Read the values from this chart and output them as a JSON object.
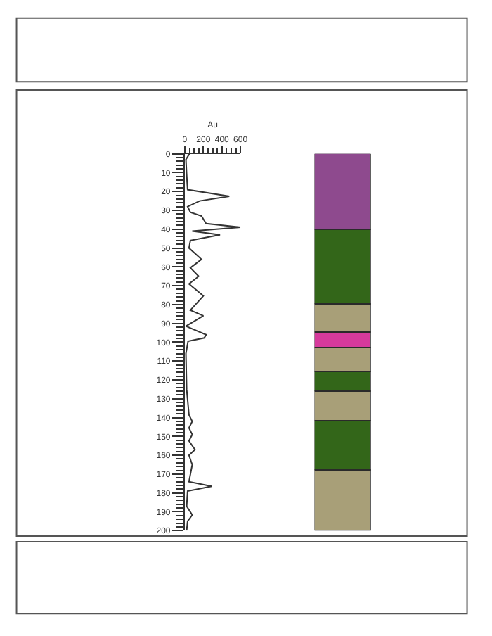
{
  "chart_data": [
    {
      "type": "line",
      "xlabel": "Au",
      "xlim": [
        0,
        600
      ],
      "xticks": [
        0,
        {
          "value": 50,
          "label": null
        },
        {
          "value": 100,
          "label": null
        },
        {
          "value": 150,
          "label": null
        },
        200,
        {
          "value": 250,
          "label": null
        },
        {
          "value": 300,
          "label": null
        },
        {
          "value": 350,
          "label": null
        },
        400,
        {
          "value": 450,
          "label": null
        },
        {
          "value": 500,
          "label": null
        },
        {
          "value": 550,
          "label": null
        },
        600
      ],
      "ylim": [
        200,
        0
      ],
      "yticks": [
        0,
        {
          "value": 2,
          "label": null
        },
        {
          "value": 4,
          "label": null
        },
        {
          "value": 6,
          "label": null
        },
        {
          "value": 8,
          "label": null
        },
        10,
        {
          "value": 12,
          "label": null
        },
        {
          "value": 14,
          "label": null
        },
        {
          "value": 16,
          "label": null
        },
        {
          "value": 18,
          "label": null
        },
        20,
        {
          "value": 22,
          "label": null
        },
        {
          "value": 24,
          "label": null
        },
        {
          "value": 26,
          "label": null
        },
        {
          "value": 28,
          "label": null
        },
        30,
        {
          "value": 32,
          "label": null
        },
        {
          "value": 34,
          "label": null
        },
        {
          "value": 36,
          "label": null
        },
        {
          "value": 38,
          "label": null
        },
        40,
        {
          "value": 42,
          "label": null
        },
        {
          "value": 44,
          "label": null
        },
        {
          "value": 46,
          "label": null
        },
        {
          "value": 48,
          "label": null
        },
        50,
        {
          "value": 52,
          "label": null
        },
        {
          "value": 54,
          "label": null
        },
        {
          "value": 56,
          "label": null
        },
        {
          "value": 58,
          "label": null
        },
        60,
        {
          "value": 62,
          "label": null
        },
        {
          "value": 64,
          "label": null
        },
        {
          "value": 66,
          "label": null
        },
        {
          "value": 68,
          "label": null
        },
        70,
        {
          "value": 72,
          "label": null
        },
        {
          "value": 74,
          "label": null
        },
        {
          "value": 76,
          "label": null
        },
        {
          "value": 78,
          "label": null
        },
        80,
        {
          "value": 82,
          "label": null
        },
        {
          "value": 84,
          "label": null
        },
        {
          "value": 86,
          "label": null
        },
        {
          "value": 88,
          "label": null
        },
        90,
        {
          "value": 92,
          "label": null
        },
        {
          "value": 94,
          "label": null
        },
        {
          "value": 96,
          "label": null
        },
        {
          "value": 98,
          "label": null
        },
        100,
        {
          "value": 102,
          "label": null
        },
        {
          "value": 104,
          "label": null
        },
        {
          "value": 106,
          "label": null
        },
        {
          "value": 108,
          "label": null
        },
        110,
        {
          "value": 112,
          "label": null
        },
        {
          "value": 114,
          "label": null
        },
        {
          "value": 116,
          "label": null
        },
        {
          "value": 118,
          "label": null
        },
        120,
        {
          "value": 122,
          "label": null
        },
        {
          "value": 124,
          "label": null
        },
        {
          "value": 126,
          "label": null
        },
        {
          "value": 128,
          "label": null
        },
        130,
        {
          "value": 132,
          "label": null
        },
        {
          "value": 134,
          "label": null
        },
        {
          "value": 136,
          "label": null
        },
        {
          "value": 138,
          "label": null
        },
        140,
        {
          "value": 142,
          "label": null
        },
        {
          "value": 144,
          "label": null
        },
        {
          "value": 146,
          "label": null
        },
        {
          "value": 148,
          "label": null
        },
        150,
        {
          "value": 152,
          "label": null
        },
        {
          "value": 154,
          "label": null
        },
        {
          "value": 156,
          "label": null
        },
        {
          "value": 158,
          "label": null
        },
        160,
        {
          "value": 162,
          "label": null
        },
        {
          "value": 164,
          "label": null
        },
        {
          "value": 166,
          "label": null
        },
        {
          "value": 168,
          "label": null
        },
        170,
        {
          "value": 172,
          "label": null
        },
        {
          "value": 174,
          "label": null
        },
        {
          "value": 176,
          "label": null
        },
        {
          "value": 178,
          "label": null
        },
        180,
        {
          "value": 182,
          "label": null
        },
        {
          "value": 184,
          "label": null
        },
        {
          "value": 186,
          "label": null
        },
        {
          "value": 188,
          "label": null
        },
        190,
        {
          "value": 192,
          "label": null
        },
        {
          "value": 194,
          "label": null
        },
        {
          "value": 196,
          "label": null
        },
        {
          "value": 198,
          "label": null
        },
        200
      ],
      "grid": false,
      "marker": "none",
      "line_style": "solid",
      "series": [
        {
          "color": "#333333",
          "x": [
            50,
            12,
            20,
            30,
            480,
            160,
            30,
            60,
            180,
            230,
            600,
            80,
            380,
            60,
            45,
            180,
            60,
            150,
            45,
            200,
            60,
            200,
            12,
            230,
            210,
            35,
            12,
            20,
            45,
            80,
            45,
            80,
            45,
            110,
            45,
            80,
            45,
            290,
            30,
            20,
            80,
            30,
            20
          ],
          "values": [
            0,
            3,
            11,
            19,
            22.5,
            25,
            28,
            31,
            33,
            37,
            39,
            41,
            43,
            46,
            50,
            56,
            60.5,
            65,
            69,
            75.4,
            83,
            86,
            91.5,
            96,
            97.7,
            99.5,
            106,
            125,
            138.6,
            142,
            145.5,
            149,
            152.4,
            157,
            160,
            165,
            174,
            176.5,
            179,
            187,
            191.7,
            195,
            200
          ]
        }
      ]
    },
    {
      "type": "bar",
      "stacked": true,
      "categories": [
        null
      ],
      "ylim": [
        200,
        0
      ],
      "tick_labels": false,
      "grid": false,
      "series": [
        {
          "color": "#8e4a8e",
          "values": [
            40
          ]
        },
        {
          "color": "#336619",
          "values": [
            40
          ]
        },
        {
          "color": "#a89f78",
          "values": [
            15
          ]
        },
        {
          "color": "#d63a9c",
          "values": [
            8
          ]
        },
        {
          "color": "#a89f78",
          "values": [
            13
          ]
        },
        {
          "color": "#336619",
          "values": [
            10
          ]
        },
        {
          "color": "#a89f78",
          "values": [
            16
          ]
        },
        {
          "color": "#336619",
          "values": [
            26
          ]
        },
        {
          "color": "#a89f78",
          "values": [
            32
          ]
        }
      ]
    }
  ]
}
